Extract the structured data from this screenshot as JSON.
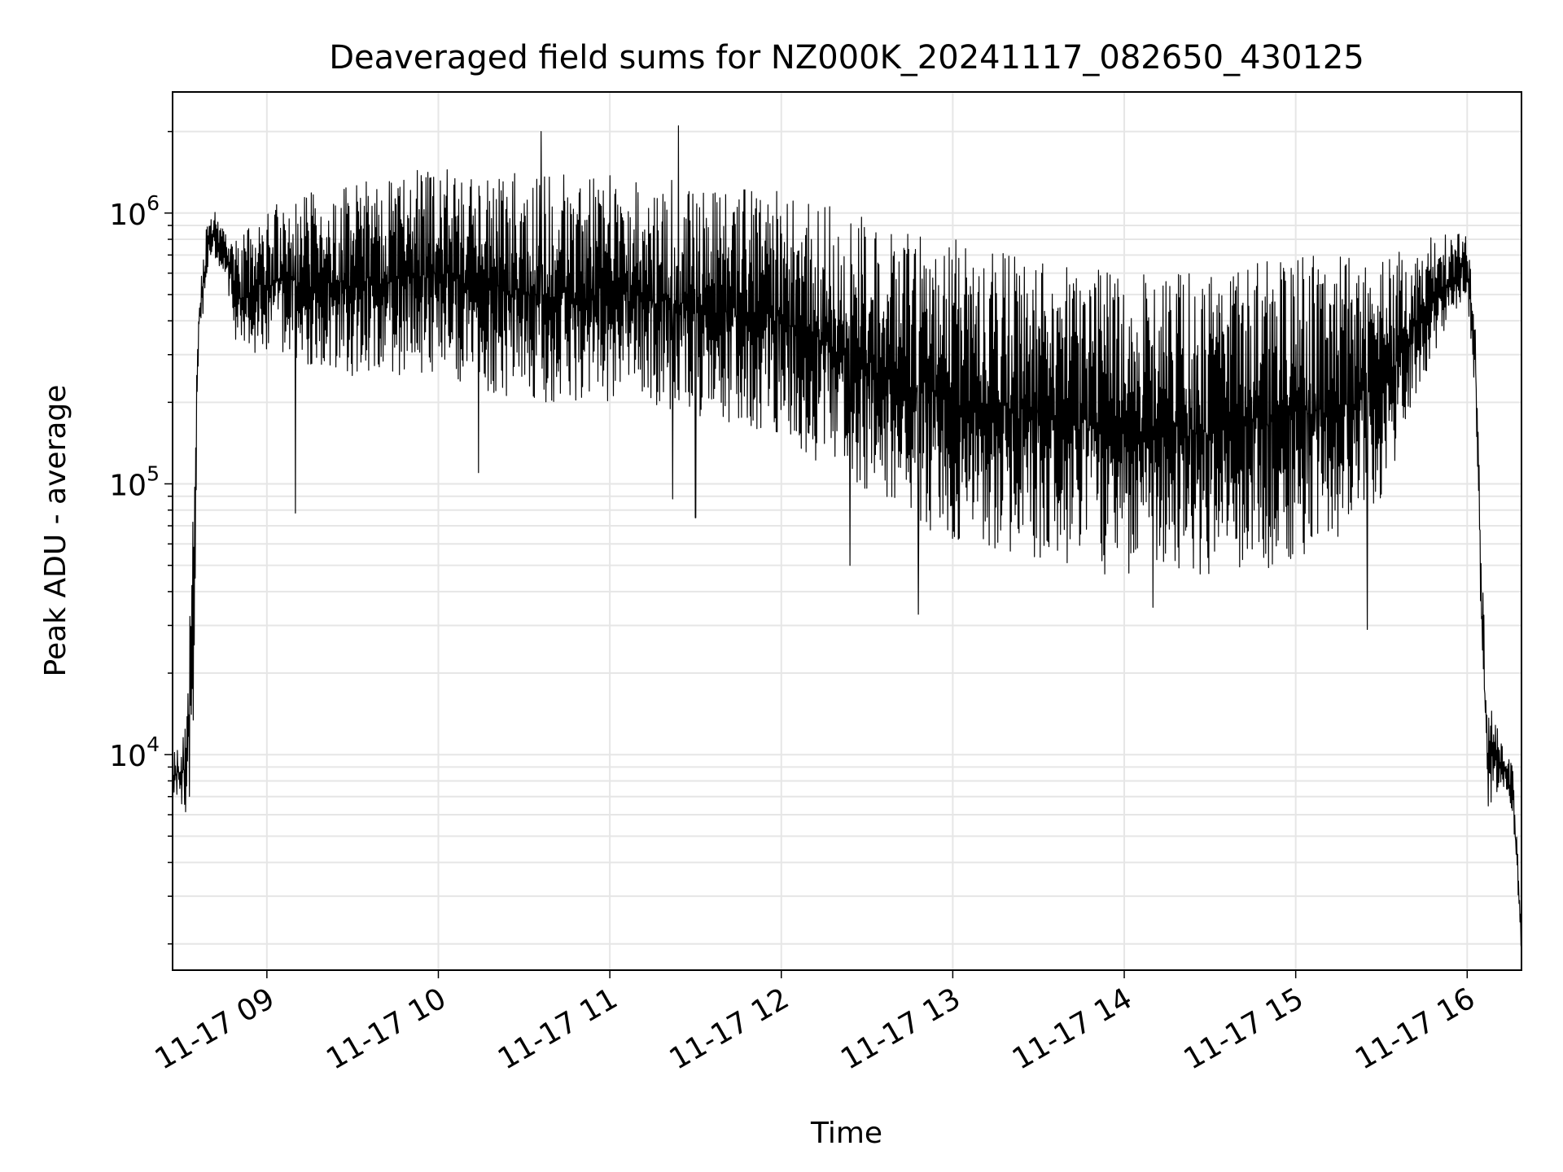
{
  "chart_data": {
    "type": "line",
    "title": "Deaveraged field sums for NZ000K_20241117_082650_430125",
    "xlabel": "Time",
    "ylabel": "Peak ADU - average",
    "x_scale": "time",
    "y_scale": "log",
    "xlim": [
      "2024-11-17 08:27",
      "2024-11-17 16:19"
    ],
    "ylim": [
      1600,
      2800000
    ],
    "grid": true,
    "line_color": "#000000",
    "x_ticks": [
      "11-17 09",
      "11-17 10",
      "11-17 11",
      "11-17 12",
      "11-17 13",
      "11-17 14",
      "11-17 15",
      "11-17 16"
    ],
    "x_tick_times": [
      "2024-11-17 09:00",
      "2024-11-17 10:00",
      "2024-11-17 11:00",
      "2024-11-17 12:00",
      "2024-11-17 13:00",
      "2024-11-17 14:00",
      "2024-11-17 15:00",
      "2024-11-17 16:00"
    ],
    "y_ticks": [
      {
        "base": "10",
        "exp": "4",
        "value": 10000
      },
      {
        "base": "10",
        "exp": "5",
        "value": 100000
      },
      {
        "base": "10",
        "exp": "6",
        "value": 1000000
      }
    ],
    "series": [
      {
        "envelope": [
          {
            "t": "2024-11-17 08:27",
            "lo": 7000,
            "hi": 10000
          },
          {
            "t": "2024-11-17 08:32",
            "lo": 6000,
            "hi": 14000
          },
          {
            "t": "2024-11-17 08:34",
            "lo": 8000,
            "hi": 70000
          },
          {
            "t": "2024-11-17 08:36",
            "lo": 300000,
            "hi": 500000
          },
          {
            "t": "2024-11-17 08:40",
            "lo": 700000,
            "hi": 1100000
          },
          {
            "t": "2024-11-17 08:45",
            "lo": 600000,
            "hi": 900000
          },
          {
            "t": "2024-11-17 08:50",
            "lo": 300000,
            "hi": 800000
          },
          {
            "t": "2024-11-17 09:00",
            "lo": 300000,
            "hi": 1100000
          },
          {
            "t": "2024-11-17 09:30",
            "lo": 250000,
            "hi": 1300000
          },
          {
            "t": "2024-11-17 10:00",
            "lo": 250000,
            "hi": 1500000
          },
          {
            "t": "2024-11-17 10:30",
            "lo": 200000,
            "hi": 1400000
          },
          {
            "t": "2024-11-17 11:00",
            "lo": 200000,
            "hi": 1400000
          },
          {
            "t": "2024-11-17 11:30",
            "lo": 180000,
            "hi": 1300000
          },
          {
            "t": "2024-11-17 12:00",
            "lo": 150000,
            "hi": 1200000
          },
          {
            "t": "2024-11-17 12:30",
            "lo": 90000,
            "hi": 1000000
          },
          {
            "t": "2024-11-17 13:00",
            "lo": 60000,
            "hi": 800000
          },
          {
            "t": "2024-11-17 13:30",
            "lo": 50000,
            "hi": 700000
          },
          {
            "t": "2024-11-17 14:00",
            "lo": 45000,
            "hi": 600000
          },
          {
            "t": "2024-11-17 14:30",
            "lo": 45000,
            "hi": 600000
          },
          {
            "t": "2024-11-17 15:00",
            "lo": 50000,
            "hi": 700000
          },
          {
            "t": "2024-11-17 15:30",
            "lo": 80000,
            "hi": 700000
          },
          {
            "t": "2024-11-17 15:45",
            "lo": 250000,
            "hi": 800000
          },
          {
            "t": "2024-11-17 16:00",
            "lo": 500000,
            "hi": 900000
          },
          {
            "t": "2024-11-17 16:03",
            "lo": 200000,
            "hi": 350000
          },
          {
            "t": "2024-11-17 16:05",
            "lo": 25000,
            "hi": 55000
          },
          {
            "t": "2024-11-17 16:07",
            "lo": 6000,
            "hi": 18000
          },
          {
            "t": "2024-11-17 16:12",
            "lo": 8000,
            "hi": 11000
          },
          {
            "t": "2024-11-17 16:16",
            "lo": 6000,
            "hi": 9000
          },
          {
            "t": "2024-11-17 16:19",
            "lo": 1800,
            "hi": 2500
          }
        ],
        "spikes": [
          {
            "t": "2024-11-17 09:10",
            "value": 78000
          },
          {
            "t": "2024-11-17 10:14",
            "value": 110000
          },
          {
            "t": "2024-11-17 10:36",
            "value": 2000000
          },
          {
            "t": "2024-11-17 11:22",
            "value": 88000
          },
          {
            "t": "2024-11-17 11:24",
            "value": 2100000
          },
          {
            "t": "2024-11-17 11:30",
            "value": 75000
          },
          {
            "t": "2024-11-17 12:24",
            "value": 50000
          },
          {
            "t": "2024-11-17 12:48",
            "value": 33000
          },
          {
            "t": "2024-11-17 14:10",
            "value": 35000
          },
          {
            "t": "2024-11-17 15:25",
            "value": 29000
          }
        ]
      }
    ]
  }
}
